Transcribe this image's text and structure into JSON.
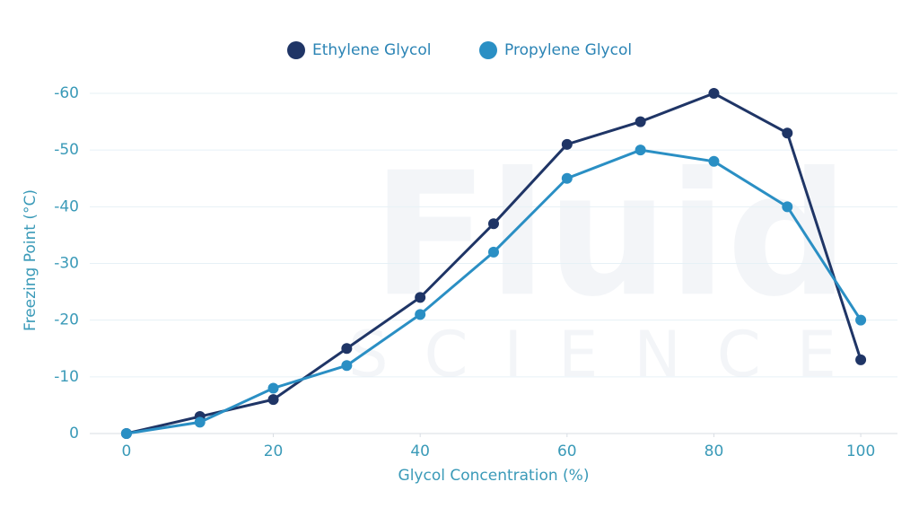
{
  "chart_data": {
    "type": "line",
    "watermark": [
      "Fluid",
      "SCIENCE"
    ],
    "x_label": "Glycol Concentration (%)",
    "y_label": "Freezing Point (°C)",
    "x": [
      0,
      10,
      20,
      30,
      40,
      50,
      60,
      70,
      80,
      90,
      100
    ],
    "series": [
      {
        "name": "Ethylene Glycol",
        "color": "#1f3566",
        "values": [
          0,
          -3,
          -6,
          -15,
          -24,
          -37,
          -51,
          -55,
          -60,
          -53,
          -13
        ]
      },
      {
        "name": "Propylene Glycol",
        "color": "#2a8fc4",
        "values": [
          0,
          -2,
          -8,
          -12,
          -21,
          -32,
          -45,
          -50,
          -48,
          -40,
          -20
        ]
      }
    ],
    "xlim": [
      -5,
      105
    ],
    "xticks": [
      0,
      20,
      40,
      60,
      80,
      100
    ],
    "ylim": [
      0,
      -60
    ],
    "yticks": [
      0,
      -10,
      -20,
      -30,
      -40,
      -50,
      -60
    ],
    "grid": true,
    "legend": "top"
  }
}
